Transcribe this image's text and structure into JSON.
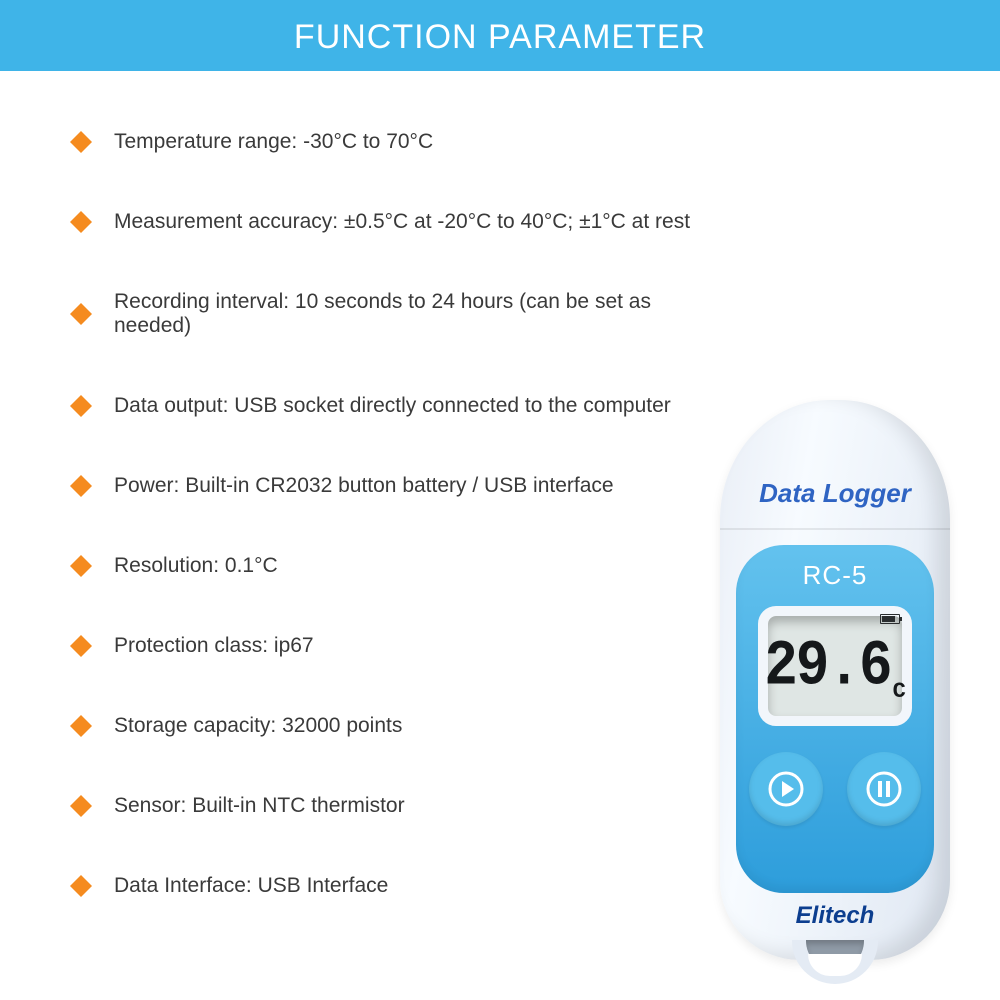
{
  "colors": {
    "header_bg": "#3fb4e8",
    "header_text": "#ffffff",
    "bullet": "#f58b1f",
    "text": "#3a3a3a",
    "device_label": "#2f64c3",
    "plate_top": "#63c2ee",
    "plate_bottom": "#2d9ddb",
    "btn_bg": "#55bdeb",
    "btn_stroke": "#ffffff",
    "brand": "#0c3e8f",
    "lcd_bg": "#dfe6e4"
  },
  "header": {
    "title": "FUNCTION PARAMETER"
  },
  "specs": [
    "Temperature range: -30°C to 70°C",
    "Measurement accuracy: ±0.5°C at -20°C to 40°C; ±1°C at rest",
    "Recording interval: 10 seconds to 24 hours (can be set as needed)",
    "Data output: USB socket directly connected to the computer",
    "Power: Built-in CR2032 button battery / USB interface",
    "Resolution: 0.1°C",
    "Protection class: ip67",
    "Storage capacity: 32000 points",
    "Sensor: Built-in NTC thermistor",
    "Data Interface: USB Interface"
  ],
  "device": {
    "top_label": "Data Logger",
    "model": "RC-5",
    "reading": "29.6",
    "unit": "C",
    "brand": "Elitech"
  }
}
